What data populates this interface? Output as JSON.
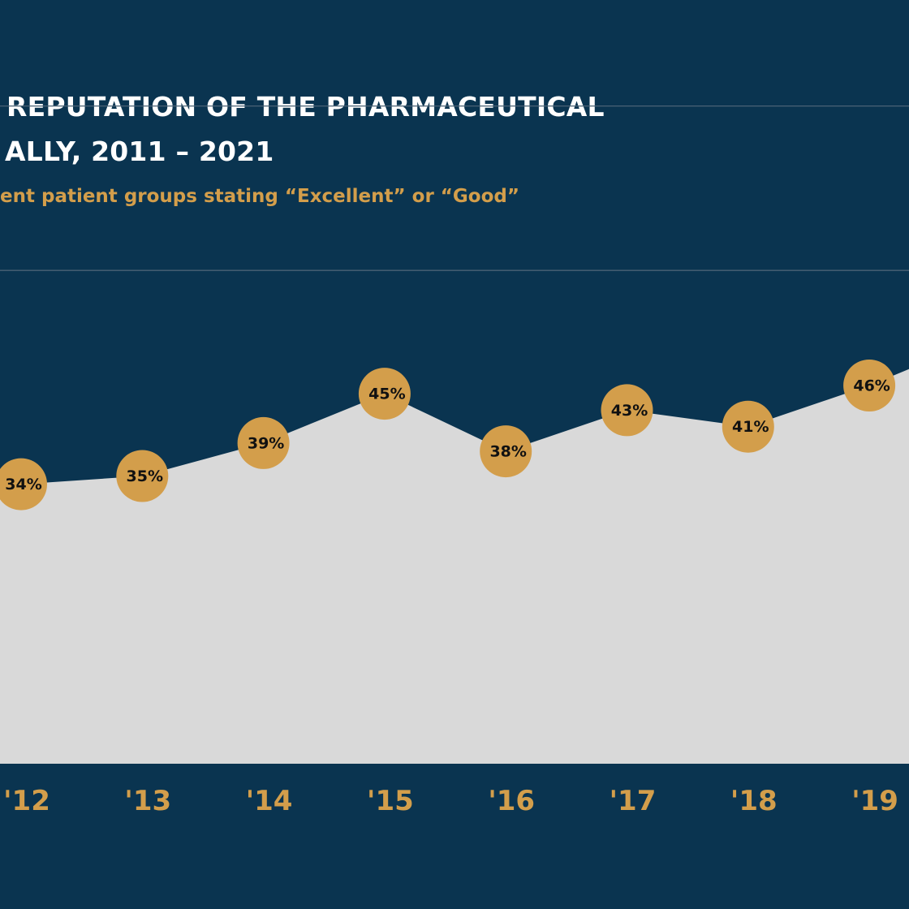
{
  "title_lines": [
    "REPUTATION OF THE PHARMACEUTICAL",
    "ALLY, 2011 – 2021"
  ],
  "subtitle": "ent patient groups stating “Excellent” or “Good”",
  "colors": {
    "background": "#0a3450",
    "area_fill": "#d9d9d9",
    "marker": "#d39e4b",
    "accent_text": "#d39e4b",
    "gridline": "#4a6275",
    "title_text": "#ffffff"
  },
  "chart_data": {
    "type": "area",
    "title": "REPUTATION OF THE PHARMACEUTICAL ALLY, 2011 – 2021",
    "subtitle": "ent patient groups stating “Excellent” or “Good”",
    "x": [
      "'12",
      "'13",
      "'14",
      "'15",
      "'16",
      "'17",
      "'18",
      "'19"
    ],
    "values": [
      34,
      35,
      39,
      45,
      38,
      43,
      41,
      46
    ],
    "data_labels": [
      "34%",
      "35%",
      "39%",
      "45%",
      "38%",
      "43%",
      "41%",
      "46%"
    ],
    "right_edge_value": 48,
    "ylim": [
      0,
      100
    ],
    "gridlines_visible": [
      60,
      80
    ],
    "grid": true,
    "legend": "none",
    "xlabel": "",
    "ylabel": ""
  }
}
